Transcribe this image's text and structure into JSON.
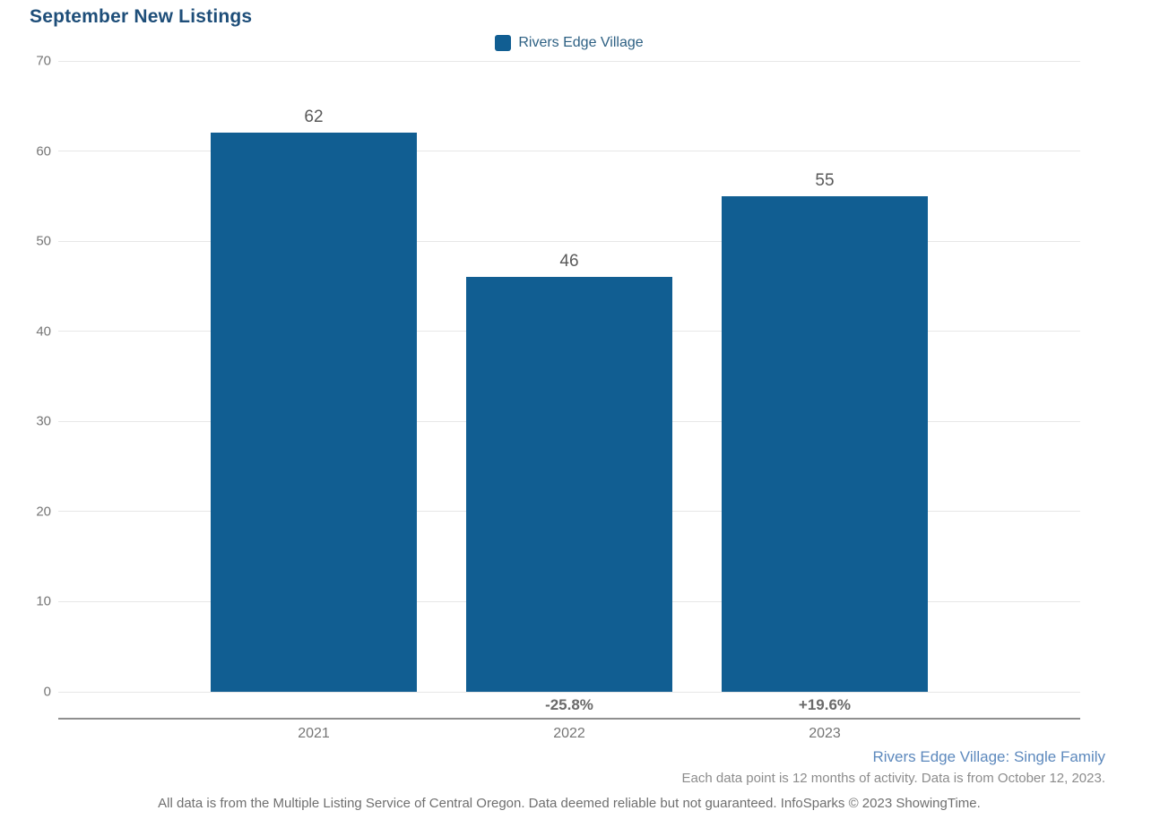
{
  "page": {
    "title": "September New Listings"
  },
  "legend": {
    "label": "Rivers Edge Village"
  },
  "footer": {
    "series_note": "Rivers Edge Village: Single Family",
    "data_note": "Each data point is 12 months of activity. Data is from October 12, 2023.",
    "disclaimer": "All data is from the Multiple Listing Service of Central Oregon. Data deemed reliable but not guaranteed. InfoSparks © 2023 ShowingTime."
  },
  "colors": {
    "bar": "#115e92",
    "title": "#1e4e79",
    "legend_text": "#2d6083",
    "footer_blue": "#5d89bd",
    "gridline": "#e7e7e7",
    "axis_line": "#8f8f8f"
  },
  "chart_data": {
    "type": "bar",
    "title": "September New Listings",
    "categories": [
      "2021",
      "2022",
      "2023"
    ],
    "series": [
      {
        "name": "Rivers Edge Village",
        "values": [
          62,
          46,
          55
        ]
      }
    ],
    "data_labels": [
      "62",
      "46",
      "55"
    ],
    "pct_change_labels": [
      null,
      "-25.8%",
      "+19.6%"
    ],
    "xlabel": "",
    "ylabel": "",
    "ylim": [
      0,
      70
    ],
    "yticks": [
      0,
      10,
      20,
      30,
      40,
      50,
      60,
      70
    ],
    "grid": true,
    "legend_position": "top-center"
  }
}
